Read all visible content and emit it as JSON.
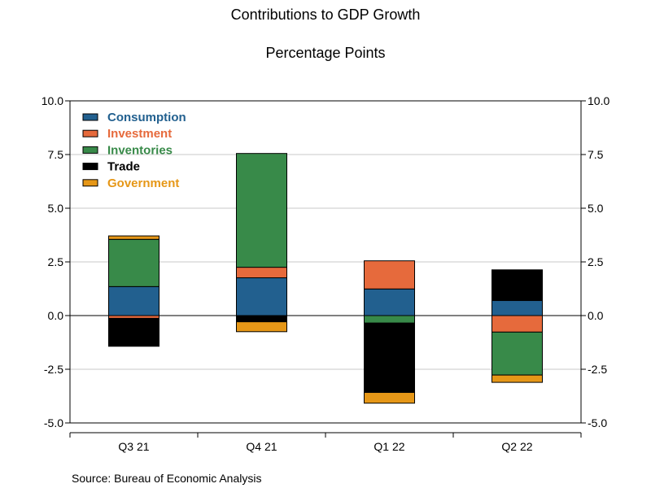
{
  "title": "Contributions to GDP Growth",
  "subtitle": "Percentage Points",
  "source": "Source:  Bureau of Economic Analysis",
  "chart_data": {
    "type": "bar",
    "stacked": true,
    "categories": [
      "Q3 21",
      "Q4 21",
      "Q1 22",
      "Q2 22"
    ],
    "ylim": [
      -5.0,
      10.0
    ],
    "yticks": [
      "-5.0",
      "-2.5",
      "0.0",
      "2.5",
      "5.0",
      "7.5",
      "10.0"
    ],
    "grid": true,
    "legend": "top-left",
    "series": [
      {
        "name": "Consumption",
        "color": "#22608f",
        "values": [
          1.35,
          1.76,
          1.24,
          0.7
        ]
      },
      {
        "name": "Investment",
        "color": "#e66a3c",
        "values": [
          -0.13,
          0.49,
          1.31,
          -0.77
        ]
      },
      {
        "name": "Inventories",
        "color": "#388a49",
        "values": [
          2.2,
          5.3,
          -0.35,
          -2.0
        ]
      },
      {
        "name": "Trade",
        "color": "#000000",
        "values": [
          -1.3,
          -0.29,
          -3.23,
          1.43
        ]
      },
      {
        "name": "Government",
        "color": "#e69717",
        "values": [
          0.16,
          -0.46,
          -0.5,
          -0.34
        ]
      }
    ]
  }
}
